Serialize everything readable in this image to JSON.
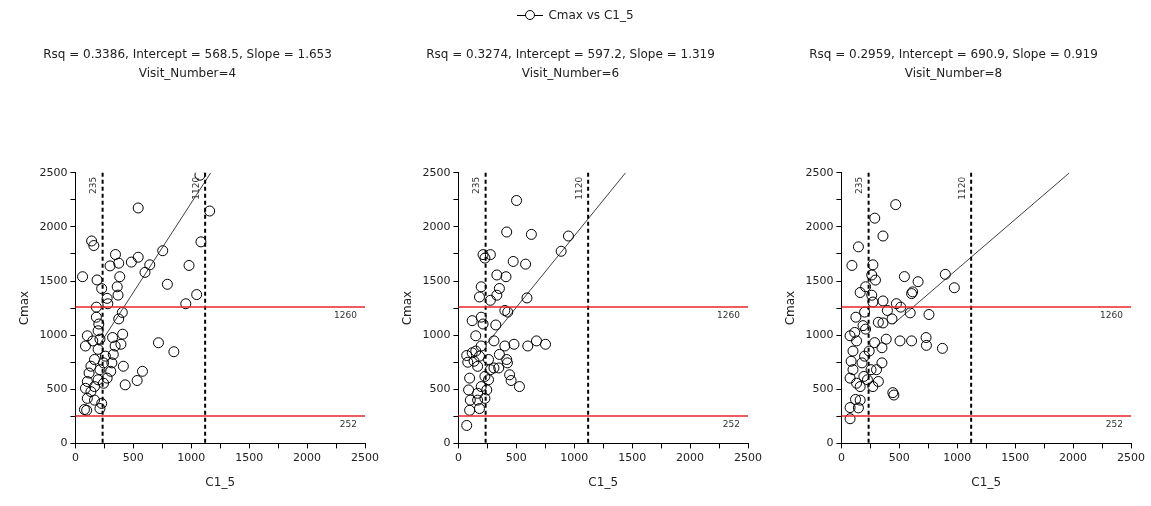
{
  "chart_data": [
    {
      "type": "scatter",
      "title": "Rsq = 0.3386, Intercept = 568.5, Slope = 1.653",
      "subtitle": "Visit_Number=4",
      "xlabel": "C1_5",
      "ylabel": "Cmax",
      "legend": "top",
      "marker": "circle",
      "grid": false,
      "xlim": [
        0,
        2500
      ],
      "xticks": [
        0,
        {
          "value": 250,
          "label": null
        },
        500,
        {
          "value": 750,
          "label": null
        },
        1000,
        {
          "value": 1250,
          "label": null
        },
        1500,
        {
          "value": 1750,
          "label": null
        },
        2000,
        {
          "value": 2250,
          "label": null
        },
        2500
      ],
      "ylim": [
        0,
        2500
      ],
      "yticks": [
        0,
        {
          "value": 250,
          "label": null
        },
        500,
        {
          "value": 750,
          "label": null
        },
        1000,
        {
          "value": 1250,
          "label": null
        },
        1500,
        {
          "value": 1750,
          "label": null
        },
        2000,
        {
          "value": 2250,
          "label": null
        },
        2500
      ],
      "ref_lines": [
        {
          "axis": "x",
          "value": 235,
          "label": "235",
          "color": "#000000",
          "line_style": "dashed"
        },
        {
          "axis": "x",
          "value": 1120,
          "label": "1120",
          "color": "#000000",
          "line_style": "dashed"
        },
        {
          "axis": "y",
          "value": 1260,
          "label": "1260",
          "color": "#e8262b",
          "line_style": "solid"
        },
        {
          "axis": "y",
          "value": 252,
          "label": "252",
          "color": "#e8262b",
          "line_style": "solid"
        }
      ],
      "series": [
        {
          "name": "Cmax vs C1_5",
          "color": "#000000",
          "x": [
            62,
            140,
            159,
            187,
            227,
            274,
            280,
            299,
            346,
            374,
            361,
            383,
            368,
            405,
            374,
            483,
            542,
            542,
            642,
            601,
            754,
            794,
            717,
            850,
            981,
            953,
            1047,
            1084,
            1075,
            1159,
            579,
            533,
            430,
            414,
            408,
            393,
            321,
            343,
            327,
            315,
            305,
            181,
            181,
            202,
            196,
            212,
            103,
            87,
            150,
            134,
            118,
            103,
            87,
            103,
            78,
            97,
            212,
            227,
            165,
            196,
            243,
            274,
            212,
            165,
            243,
            259,
            165,
            134,
            196
          ],
          "values": [
            1540,
            1870,
            1828,
            1510,
            1430,
            1340,
            1290,
            1640,
            1745,
            1665,
            1447,
            1540,
            1370,
            1210,
            1150,
            1675,
            1720,
            2175,
            1650,
            1580,
            1780,
            1470,
            930,
            847,
            1644,
            1290,
            1375,
            1862,
            2478,
            2147,
            666,
            581,
            541,
            713,
            1009,
            916,
            978,
            900,
            822,
            744,
            666,
            1259,
            1166,
            1103,
            1041,
            963,
            994,
            900,
            947,
            713,
            650,
            572,
            509,
            416,
            313,
            306,
            322,
            369,
            400,
            588,
            556,
            603,
            681,
            775,
            744,
            806,
            525,
            478,
            869
          ]
        },
        {
          "type": "line",
          "color": "#404040",
          "marker": "none",
          "x": [
            200,
            1168.5
          ],
          "values": [
            899,
            2500
          ]
        }
      ]
    },
    {
      "type": "scatter",
      "title": "Rsq = 0.3274, Intercept = 597.2, Slope = 1.319",
      "subtitle": "Visit_Number=6",
      "xlabel": "C1_5",
      "ylabel": "Cmax",
      "marker": "circle",
      "grid": false,
      "xlim": [
        0,
        2500
      ],
      "xticks": [
        0,
        {
          "value": 250,
          "label": null
        },
        500,
        {
          "value": 750,
          "label": null
        },
        1000,
        {
          "value": 1250,
          "label": null
        },
        1500,
        {
          "value": 1750,
          "label": null
        },
        2000,
        {
          "value": 2250,
          "label": null
        },
        2500
      ],
      "ylim": [
        0,
        2500
      ],
      "yticks": [
        0,
        {
          "value": 250,
          "label": null
        },
        500,
        {
          "value": 750,
          "label": null
        },
        1000,
        {
          "value": 1250,
          "label": null
        },
        1500,
        {
          "value": 1750,
          "label": null
        },
        2000,
        {
          "value": 2250,
          "label": null
        },
        2500
      ],
      "ref_lines": [
        {
          "axis": "x",
          "value": 235,
          "label": "235",
          "color": "#000000",
          "line_style": "dashed"
        },
        {
          "axis": "x",
          "value": 1120,
          "label": "1120",
          "color": "#000000",
          "line_style": "dashed"
        },
        {
          "axis": "y",
          "value": 1260,
          "label": "1260",
          "color": "#e8262b",
          "line_style": "solid"
        },
        {
          "axis": "y",
          "value": 252,
          "label": "252",
          "color": "#e8262b",
          "line_style": "solid"
        }
      ],
      "series": [
        {
          "color": "#000000",
          "x": [
            72,
            97,
            103,
            88,
            97,
            81,
            72,
            119,
            150,
            135,
            166,
            182,
            197,
            150,
            119,
            197,
            213,
            182,
            197,
            213,
            229,
            276,
            276,
            332,
            354,
            332,
            411,
            417,
            473,
            502,
            580,
            630,
            592,
            401,
            426,
            323,
            307,
            401,
            480,
            599,
            674,
            752,
            887,
            950,
            423,
            417,
            442,
            455,
            527,
            348,
            354,
            260,
            276,
            197,
            166,
            166,
            182,
            229,
            245,
            229,
            260,
            307
          ],
          "values": [
            166,
            306,
            400,
            494,
            603,
            750,
            812,
            837,
            853,
            759,
            712,
            806,
            900,
            994,
            1134,
            1166,
            1103,
            1353,
            1447,
            1744,
            1712,
            1744,
            1322,
            1369,
            1431,
            1556,
            1540,
            1953,
            1681,
            2244,
            1656,
            1931,
            1344,
            1228,
            1213,
            1094,
            947,
            900,
            916,
            900,
            947,
            916,
            1775,
            1916,
            744,
            775,
            634,
            581,
            525,
            697,
            822,
            588,
            681,
            525,
            463,
            400,
            322,
            416,
            494,
            619,
            775,
            697
          ]
        },
        {
          "type": "line",
          "color": "#404040",
          "marker": "none",
          "x": [
            250,
            1442.6
          ],
          "values": [
            927,
            2500
          ]
        }
      ]
    },
    {
      "type": "scatter",
      "title": "Rsq = 0.2959, Intercept = 690.9, Slope = 0.919",
      "subtitle": "Visit_Number=8",
      "xlabel": "C1_5",
      "ylabel": "Cmax",
      "marker": "circle",
      "grid": false,
      "xlim": [
        0,
        2500
      ],
      "xticks": [
        0,
        {
          "value": 250,
          "label": null
        },
        500,
        {
          "value": 750,
          "label": null
        },
        1000,
        {
          "value": 1250,
          "label": null
        },
        1500,
        {
          "value": 1750,
          "label": null
        },
        2000,
        {
          "value": 2250,
          "label": null
        },
        2500
      ],
      "ylim": [
        0,
        2500
      ],
      "yticks": [
        0,
        {
          "value": 250,
          "label": null
        },
        500,
        {
          "value": 750,
          "label": null
        },
        1000,
        {
          "value": 1250,
          "label": null
        },
        1500,
        {
          "value": 1750,
          "label": null
        },
        2000,
        {
          "value": 2250,
          "label": null
        },
        2500
      ],
      "ref_lines": [
        {
          "axis": "x",
          "value": 235,
          "label": "235",
          "color": "#000000",
          "line_style": "dashed"
        },
        {
          "axis": "x",
          "value": 1120,
          "label": "1120",
          "color": "#000000",
          "line_style": "dashed"
        },
        {
          "axis": "y",
          "value": 1260,
          "label": "1260",
          "color": "#e8262b",
          "line_style": "solid"
        },
        {
          "axis": "y",
          "value": 252,
          "label": "252",
          "color": "#e8262b",
          "line_style": "solid"
        }
      ],
      "series": [
        {
          "color": "#000000",
          "x": [
            75,
            75,
            147,
            162,
            122,
            75,
            100,
            84,
            100,
            75,
            115,
            131,
            125,
            162,
            147,
            91,
            209,
            200,
            187,
            288,
            272,
            262,
            294,
            262,
            272,
            359,
            359,
            469,
            475,
            512,
            544,
            606,
            615,
            662,
            594,
            756,
            897,
            975,
            506,
            606,
            731,
            734,
            872,
            444,
            453,
            387,
            350,
            350,
            319,
            359,
            397,
            437,
            319,
            272,
            194,
            225,
            178,
            200,
            240,
            287,
            162,
            131,
            256,
            303,
            209
          ],
          "values": [
            228,
            331,
            328,
            400,
            406,
            603,
            681,
            759,
            853,
            994,
            1025,
            947,
            1166,
            1394,
            1816,
            1644,
            1447,
            1213,
            1088,
            2081,
            1650,
            1556,
            1509,
            1369,
            1306,
            1316,
            1916,
            2206,
            1291,
            1259,
            1541,
            1384,
            1400,
            1494,
            1206,
            1191,
            1562,
            1438,
            947,
            947,
            978,
            906,
            878,
            469,
            447,
            963,
            884,
            744,
            1119,
            1113,
            1228,
            1150,
            572,
            525,
            619,
            588,
            744,
            806,
            853,
            931,
            525,
            556,
            681,
            681,
            1056
          ]
        },
        {
          "type": "line",
          "color": "#404040",
          "marker": "none",
          "x": [
            450,
            1968.5
          ],
          "values": [
            1104.5,
            2500
          ]
        }
      ]
    }
  ]
}
